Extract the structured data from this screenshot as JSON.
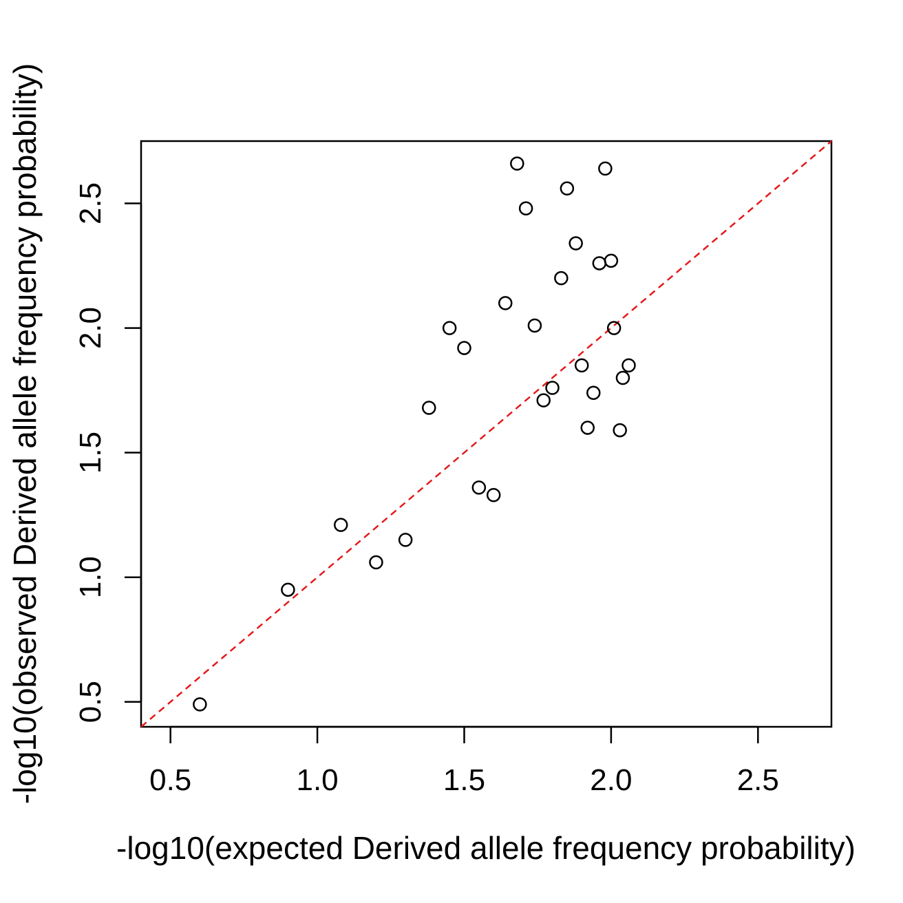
{
  "chart_data": {
    "type": "scatter",
    "title": "",
    "xlabel": "-log10(expected Derived allele frequency probability)",
    "ylabel": "-log10(observed Derived allele frequency probability)",
    "xlim": [
      0.4,
      2.75
    ],
    "ylim": [
      0.4,
      2.75
    ],
    "xticks": [
      0.5,
      1.0,
      1.5,
      2.0,
      2.5
    ],
    "xtick_labels": [
      "0.5",
      "1.0",
      "1.5",
      "2.0",
      "2.5"
    ],
    "yticks": [
      0.5,
      1.0,
      1.5,
      2.0,
      2.5
    ],
    "ytick_labels": [
      "0.5",
      "1.0",
      "1.5",
      "2.0",
      "2.5"
    ],
    "grid": false,
    "reference_line": {
      "from": [
        0.4,
        0.4
      ],
      "to": [
        2.75,
        2.75
      ],
      "style": "dashed",
      "color": "#e31a1c"
    },
    "marker": {
      "shape": "open-circle",
      "color": "#000000"
    },
    "series": [
      {
        "points": [
          [
            0.6,
            0.49
          ],
          [
            0.9,
            0.95
          ],
          [
            1.08,
            1.21
          ],
          [
            1.2,
            1.06
          ],
          [
            1.3,
            1.15
          ],
          [
            1.38,
            1.68
          ],
          [
            1.45,
            2.0
          ],
          [
            1.5,
            1.92
          ],
          [
            1.55,
            1.36
          ],
          [
            1.6,
            1.33
          ],
          [
            1.64,
            2.1
          ],
          [
            1.68,
            2.66
          ],
          [
            1.71,
            2.48
          ],
          [
            1.74,
            2.01
          ],
          [
            1.77,
            1.71
          ],
          [
            1.8,
            1.76
          ],
          [
            1.83,
            2.2
          ],
          [
            1.85,
            2.56
          ],
          [
            1.88,
            2.34
          ],
          [
            1.9,
            1.85
          ],
          [
            1.92,
            1.6
          ],
          [
            1.94,
            1.74
          ],
          [
            1.96,
            2.26
          ],
          [
            1.98,
            2.64
          ],
          [
            2.0,
            2.27
          ],
          [
            2.01,
            2.0
          ],
          [
            2.03,
            1.59
          ],
          [
            2.04,
            1.8
          ],
          [
            2.06,
            1.85
          ]
        ]
      }
    ]
  }
}
